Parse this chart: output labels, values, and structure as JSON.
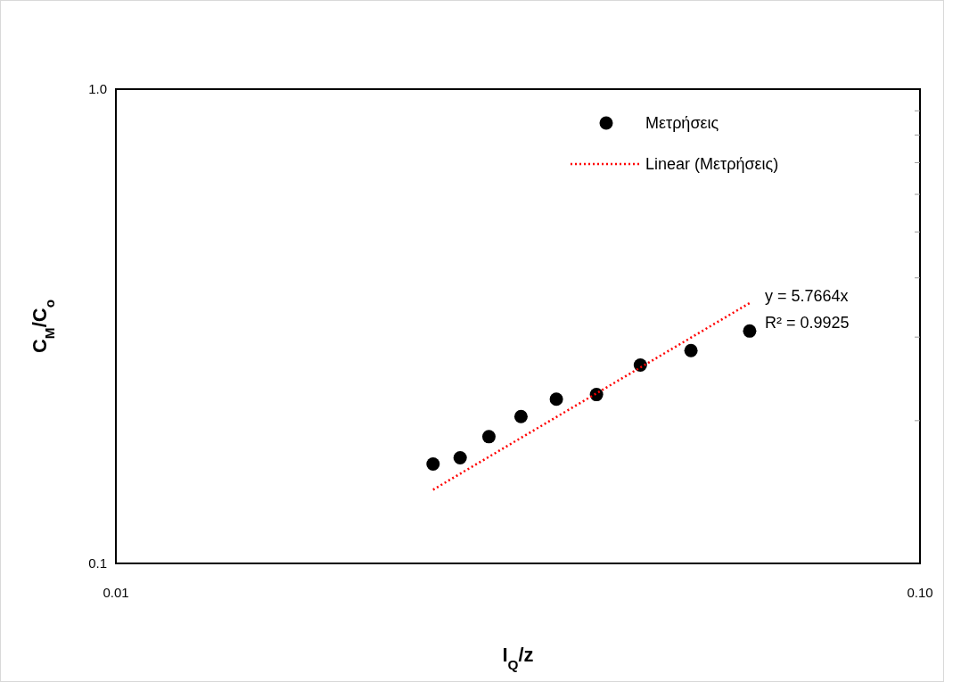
{
  "chart_data": {
    "type": "scatter",
    "xlabel": "I$_{Q}$/z",
    "ylabel": "C$_{M}$/C$_{o}$",
    "log": "xy",
    "legend": "top right",
    "xlim": [
      0.01,
      0.1
    ],
    "xticks": [
      {
        "value": 0.01,
        "label": "0.01"
      },
      {
        "value": 0.1,
        "label": "0.10"
      }
    ],
    "ylim": [
      0.1,
      1
    ],
    "yticks": [
      {
        "value": 0.1,
        "label": "0.1"
      },
      {
        "value": 1,
        "label": "1.0"
      }
    ],
    "series": [
      {
        "name": "Μετρήσεις",
        "marker": "circle",
        "color": "#000000",
        "x": [
          0.0248,
          0.0268,
          0.0291,
          0.0319,
          0.0353,
          0.0396,
          0.0449,
          0.0519,
          0.0614
        ],
        "values": [
          0.162,
          0.167,
          0.185,
          0.204,
          0.222,
          0.227,
          0.262,
          0.281,
          0.309
        ]
      },
      {
        "name": "Linear (Μετρήσεις)",
        "type": "line",
        "color": "#ff0000",
        "line_style": "dotted",
        "marker": "none",
        "x": [
          0.0248,
          0.0614
        ],
        "values": [
          0.143,
          0.354
        ]
      }
    ],
    "annotations": [
      "y = 5.7664x",
      "R² = 0.9925"
    ]
  }
}
